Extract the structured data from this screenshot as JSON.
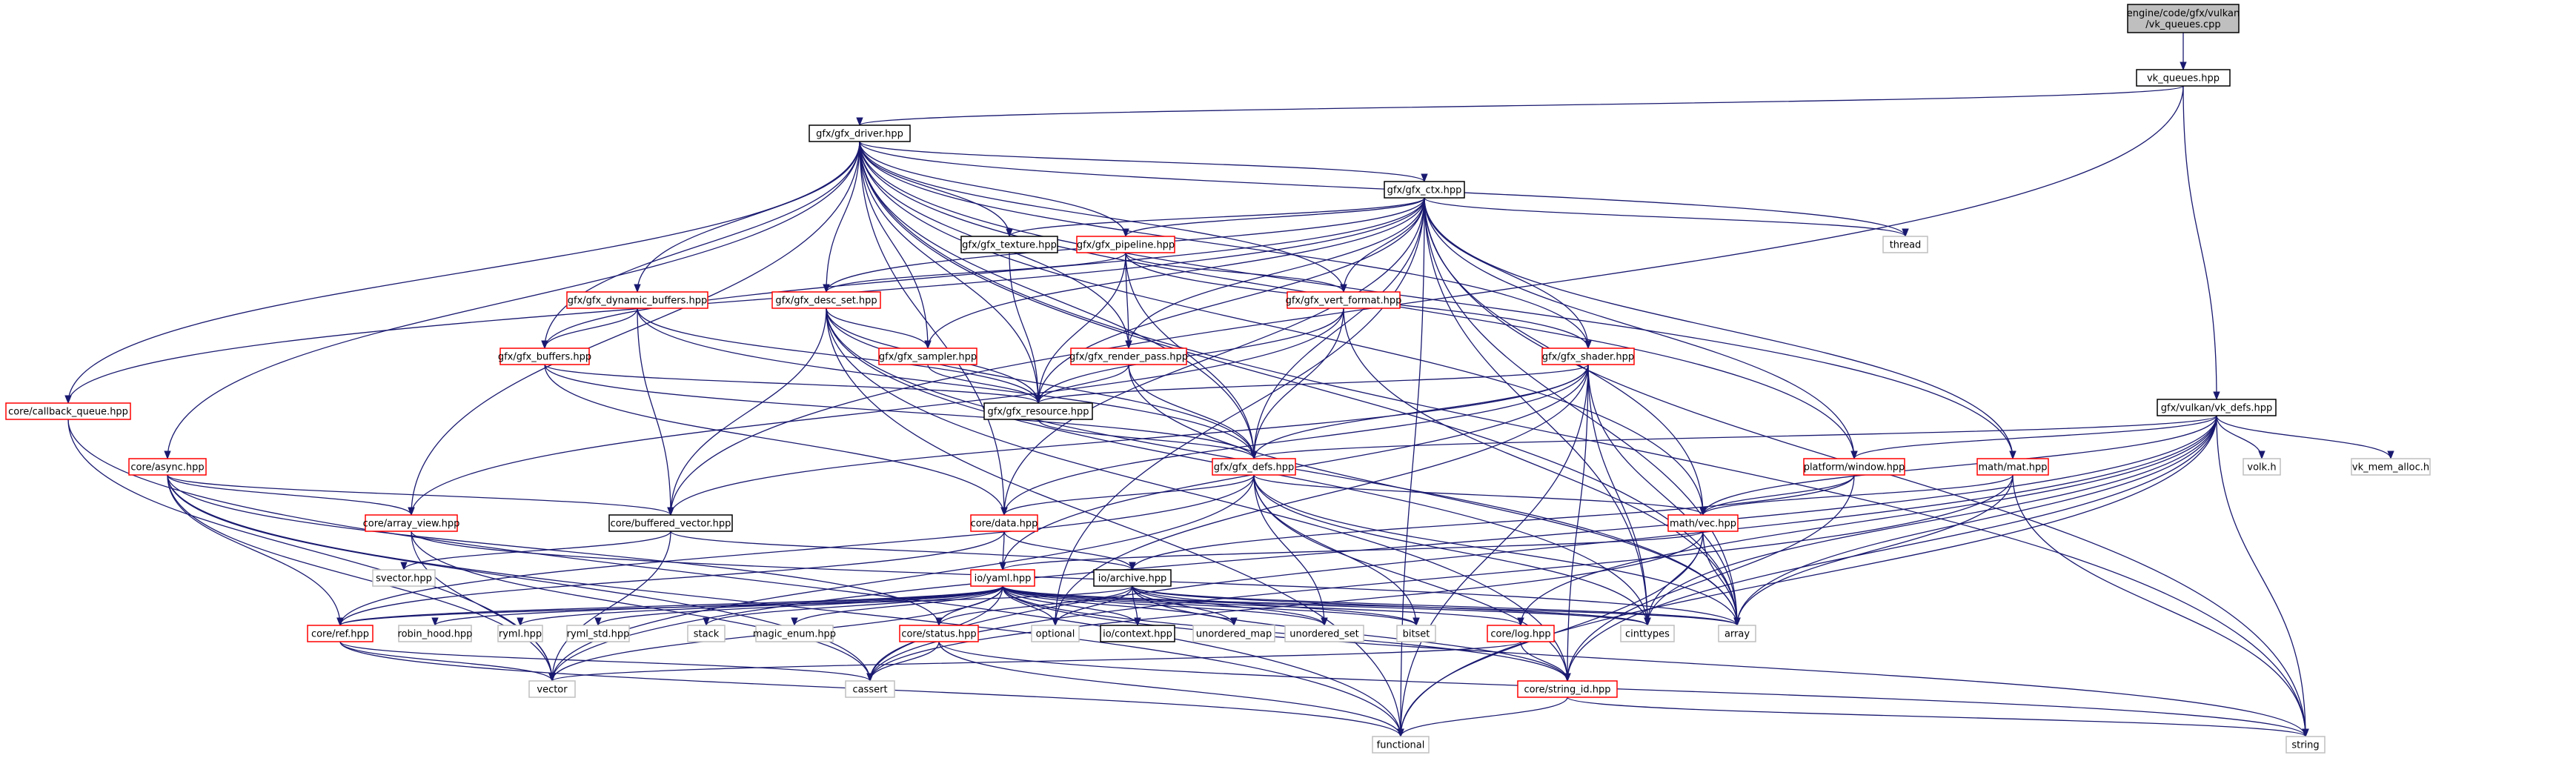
{
  "colors": {
    "root_fill": "#bfbfbf",
    "normal_border": "#000000",
    "red_border": "#ff0000",
    "system_border": "#bfbfbf",
    "edge": "#191970"
  },
  "nodes": [
    {
      "id": "root",
      "lines": [
        "engine/code/gfx/vulkan",
        "/vk_queues.cpp"
      ],
      "kind": "root"
    },
    {
      "id": "vk_queues",
      "lines": [
        "vk_queues.hpp"
      ],
      "kind": "normal"
    },
    {
      "id": "gfx_driver",
      "lines": [
        "gfx/gfx_driver.hpp"
      ],
      "kind": "normal"
    },
    {
      "id": "vk_defs",
      "lines": [
        "gfx/vulkan/vk_defs.hpp"
      ],
      "kind": "normal"
    },
    {
      "id": "gfx_ctx",
      "lines": [
        "gfx/gfx_ctx.hpp"
      ],
      "kind": "normal"
    },
    {
      "id": "thread",
      "lines": [
        "thread"
      ],
      "kind": "system"
    },
    {
      "id": "gfx_texture",
      "lines": [
        "gfx/gfx_texture.hpp"
      ],
      "kind": "normal"
    },
    {
      "id": "gfx_pipeline",
      "lines": [
        "gfx/gfx_pipeline.hpp"
      ],
      "kind": "red"
    },
    {
      "id": "gfx_dyn_buffers",
      "lines": [
        "gfx/gfx_dynamic_buffers.hpp"
      ],
      "kind": "red"
    },
    {
      "id": "gfx_desc_set",
      "lines": [
        "gfx/gfx_desc_set.hpp"
      ],
      "kind": "red"
    },
    {
      "id": "gfx_vert_format",
      "lines": [
        "gfx/gfx_vert_format.hpp"
      ],
      "kind": "red"
    },
    {
      "id": "gfx_buffers",
      "lines": [
        "gfx/gfx_buffers.hpp"
      ],
      "kind": "red"
    },
    {
      "id": "gfx_sampler",
      "lines": [
        "gfx/gfx_sampler.hpp"
      ],
      "kind": "red"
    },
    {
      "id": "gfx_render_pass",
      "lines": [
        "gfx/gfx_render_pass.hpp"
      ],
      "kind": "red"
    },
    {
      "id": "gfx_shader",
      "lines": [
        "gfx/gfx_shader.hpp"
      ],
      "kind": "red"
    },
    {
      "id": "callback_queue",
      "lines": [
        "core/callback_queue.hpp"
      ],
      "kind": "red"
    },
    {
      "id": "gfx_resource",
      "lines": [
        "gfx/gfx_resource.hpp"
      ],
      "kind": "normal"
    },
    {
      "id": "gfx_defs",
      "lines": [
        "gfx/gfx_defs.hpp"
      ],
      "kind": "red"
    },
    {
      "id": "platform_window",
      "lines": [
        "platform/window.hpp"
      ],
      "kind": "red"
    },
    {
      "id": "math_mat",
      "lines": [
        "math/mat.hpp"
      ],
      "kind": "red"
    },
    {
      "id": "volk",
      "lines": [
        "volk.h"
      ],
      "kind": "system"
    },
    {
      "id": "vk_mem_alloc",
      "lines": [
        "vk_mem_alloc.h"
      ],
      "kind": "system"
    },
    {
      "id": "core_async",
      "lines": [
        "core/async.hpp"
      ],
      "kind": "red"
    },
    {
      "id": "array_view",
      "lines": [
        "core/array_view.hpp"
      ],
      "kind": "red"
    },
    {
      "id": "buffered_vector",
      "lines": [
        "core/buffered_vector.hpp"
      ],
      "kind": "normal"
    },
    {
      "id": "core_data",
      "lines": [
        "core/data.hpp"
      ],
      "kind": "red"
    },
    {
      "id": "math_vec",
      "lines": [
        "math/vec.hpp"
      ],
      "kind": "red"
    },
    {
      "id": "svector",
      "lines": [
        "svector.hpp"
      ],
      "kind": "system"
    },
    {
      "id": "io_yaml",
      "lines": [
        "io/yaml.hpp"
      ],
      "kind": "red"
    },
    {
      "id": "io_archive",
      "lines": [
        "io/archive.hpp"
      ],
      "kind": "normal"
    },
    {
      "id": "core_ref",
      "lines": [
        "core/ref.hpp"
      ],
      "kind": "red"
    },
    {
      "id": "robin_hood",
      "lines": [
        "robin_hood.hpp"
      ],
      "kind": "system"
    },
    {
      "id": "ryml",
      "lines": [
        "ryml.hpp"
      ],
      "kind": "system"
    },
    {
      "id": "ryml_std",
      "lines": [
        "ryml_std.hpp"
      ],
      "kind": "system"
    },
    {
      "id": "stack",
      "lines": [
        "stack"
      ],
      "kind": "system"
    },
    {
      "id": "magic_enum",
      "lines": [
        "magic_enum.hpp"
      ],
      "kind": "system"
    },
    {
      "id": "core_status",
      "lines": [
        "core/status.hpp"
      ],
      "kind": "red"
    },
    {
      "id": "optional",
      "lines": [
        "optional"
      ],
      "kind": "system"
    },
    {
      "id": "io_context",
      "lines": [
        "io/context.hpp"
      ],
      "kind": "normal"
    },
    {
      "id": "unordered_map",
      "lines": [
        "unordered_map"
      ],
      "kind": "system"
    },
    {
      "id": "unordered_set",
      "lines": [
        "unordered_set"
      ],
      "kind": "system"
    },
    {
      "id": "bitset",
      "lines": [
        "bitset"
      ],
      "kind": "system"
    },
    {
      "id": "core_log",
      "lines": [
        "core/log.hpp"
      ],
      "kind": "red"
    },
    {
      "id": "cinttypes",
      "lines": [
        "cinttypes"
      ],
      "kind": "system"
    },
    {
      "id": "array",
      "lines": [
        "array"
      ],
      "kind": "system"
    },
    {
      "id": "vector",
      "lines": [
        "vector"
      ],
      "kind": "system"
    },
    {
      "id": "cassert",
      "lines": [
        "cassert"
      ],
      "kind": "system"
    },
    {
      "id": "string_id",
      "lines": [
        "core/string_id.hpp"
      ],
      "kind": "red"
    },
    {
      "id": "functional",
      "lines": [
        "functional"
      ],
      "kind": "system"
    },
    {
      "id": "string",
      "lines": [
        "string"
      ],
      "kind": "system"
    }
  ],
  "edges": [
    [
      "root",
      "vk_queues"
    ],
    [
      "vk_queues",
      "gfx_driver"
    ],
    [
      "vk_queues",
      "vk_defs"
    ],
    [
      "vk_queues",
      "buffered_vector"
    ],
    [
      "gfx_driver",
      "gfx_ctx"
    ],
    [
      "gfx_driver",
      "thread"
    ],
    [
      "gfx_driver",
      "gfx_texture"
    ],
    [
      "gfx_driver",
      "gfx_pipeline"
    ],
    [
      "gfx_driver",
      "gfx_dyn_buffers"
    ],
    [
      "gfx_driver",
      "gfx_desc_set"
    ],
    [
      "gfx_driver",
      "gfx_vert_format"
    ],
    [
      "gfx_driver",
      "gfx_buffers"
    ],
    [
      "gfx_driver",
      "gfx_sampler"
    ],
    [
      "gfx_driver",
      "gfx_render_pass"
    ],
    [
      "gfx_driver",
      "gfx_shader"
    ],
    [
      "gfx_driver",
      "callback_queue"
    ],
    [
      "gfx_driver",
      "gfx_resource"
    ],
    [
      "gfx_driver",
      "gfx_defs"
    ],
    [
      "gfx_driver",
      "platform_window"
    ],
    [
      "gfx_driver",
      "math_mat"
    ],
    [
      "gfx_driver",
      "core_async"
    ],
    [
      "gfx_driver",
      "array_view"
    ],
    [
      "gfx_driver",
      "core_data"
    ],
    [
      "gfx_driver",
      "math_vec"
    ],
    [
      "gfx_driver",
      "array"
    ],
    [
      "gfx_driver",
      "string"
    ],
    [
      "gfx_ctx",
      "thread"
    ],
    [
      "gfx_ctx",
      "gfx_texture"
    ],
    [
      "gfx_ctx",
      "gfx_pipeline"
    ],
    [
      "gfx_ctx",
      "gfx_desc_set"
    ],
    [
      "gfx_ctx",
      "gfx_vert_format"
    ],
    [
      "gfx_ctx",
      "gfx_buffers"
    ],
    [
      "gfx_ctx",
      "gfx_sampler"
    ],
    [
      "gfx_ctx",
      "gfx_render_pass"
    ],
    [
      "gfx_ctx",
      "gfx_shader"
    ],
    [
      "gfx_ctx",
      "callback_queue"
    ],
    [
      "gfx_ctx",
      "gfx_resource"
    ],
    [
      "gfx_ctx",
      "gfx_defs"
    ],
    [
      "gfx_ctx",
      "platform_window"
    ],
    [
      "gfx_ctx",
      "math_mat"
    ],
    [
      "gfx_ctx",
      "math_vec"
    ],
    [
      "gfx_ctx",
      "core_data"
    ],
    [
      "gfx_ctx",
      "optional"
    ],
    [
      "gfx_ctx",
      "cinttypes"
    ],
    [
      "gfx_ctx",
      "array"
    ],
    [
      "gfx_ctx",
      "string"
    ],
    [
      "gfx_ctx",
      "functional"
    ],
    [
      "gfx_pipeline",
      "gfx_desc_set"
    ],
    [
      "gfx_pipeline",
      "gfx_vert_format"
    ],
    [
      "gfx_pipeline",
      "gfx_render_pass"
    ],
    [
      "gfx_pipeline",
      "gfx_shader"
    ],
    [
      "gfx_pipeline",
      "gfx_resource"
    ],
    [
      "gfx_pipeline",
      "gfx_defs"
    ],
    [
      "gfx_texture",
      "gfx_resource"
    ],
    [
      "gfx_dyn_buffers",
      "gfx_buffers"
    ],
    [
      "gfx_dyn_buffers",
      "gfx_resource"
    ],
    [
      "gfx_dyn_buffers",
      "buffered_vector"
    ],
    [
      "gfx_dyn_buffers",
      "gfx_defs"
    ],
    [
      "gfx_desc_set",
      "gfx_sampler"
    ],
    [
      "gfx_desc_set",
      "gfx_resource"
    ],
    [
      "gfx_desc_set",
      "gfx_defs"
    ],
    [
      "gfx_desc_set",
      "buffered_vector"
    ],
    [
      "gfx_desc_set",
      "functional"
    ],
    [
      "gfx_desc_set",
      "array"
    ],
    [
      "gfx_desc_set",
      "string_id"
    ],
    [
      "gfx_desc_set",
      "cinttypes"
    ],
    [
      "gfx_vert_format",
      "gfx_resource"
    ],
    [
      "gfx_vert_format",
      "gfx_defs"
    ],
    [
      "gfx_vert_format",
      "array"
    ],
    [
      "gfx_vert_format",
      "array_view"
    ],
    [
      "gfx_buffers",
      "gfx_resource"
    ],
    [
      "gfx_buffers",
      "gfx_defs"
    ],
    [
      "gfx_buffers",
      "core_data"
    ],
    [
      "gfx_sampler",
      "gfx_resource"
    ],
    [
      "gfx_render_pass",
      "gfx_resource"
    ],
    [
      "gfx_render_pass",
      "gfx_defs"
    ],
    [
      "gfx_render_pass",
      "array"
    ],
    [
      "gfx_shader",
      "gfx_resource"
    ],
    [
      "gfx_shader",
      "gfx_defs"
    ],
    [
      "gfx_shader",
      "core_data"
    ],
    [
      "gfx_shader",
      "string_id"
    ],
    [
      "gfx_shader",
      "array"
    ],
    [
      "gfx_shader",
      "cinttypes"
    ],
    [
      "gfx_shader",
      "optional"
    ],
    [
      "gfx_shader",
      "buffered_vector"
    ],
    [
      "gfx_shader",
      "functional"
    ],
    [
      "gfx_shader",
      "io_yaml"
    ],
    [
      "callback_queue",
      "functional"
    ],
    [
      "callback_queue",
      "vector"
    ],
    [
      "gfx_resource",
      "gfx_defs"
    ],
    [
      "gfx_defs",
      "math_vec"
    ],
    [
      "gfx_defs",
      "core_data"
    ],
    [
      "gfx_defs",
      "array"
    ],
    [
      "gfx_defs",
      "bitset"
    ],
    [
      "gfx_defs",
      "unordered_set"
    ],
    [
      "gfx_defs",
      "string_id"
    ],
    [
      "gfx_defs",
      "cinttypes"
    ],
    [
      "gfx_defs",
      "core_ref"
    ],
    [
      "gfx_defs",
      "vector"
    ],
    [
      "vk_defs",
      "gfx_defs"
    ],
    [
      "vk_defs",
      "platform_window"
    ],
    [
      "vk_defs",
      "math_vec"
    ],
    [
      "vk_defs",
      "volk"
    ],
    [
      "vk_defs",
      "vk_mem_alloc"
    ],
    [
      "vk_defs",
      "string"
    ],
    [
      "vk_defs",
      "functional"
    ],
    [
      "vk_defs",
      "vector"
    ],
    [
      "vk_defs",
      "string_id"
    ],
    [
      "vk_defs",
      "array"
    ],
    [
      "vk_defs",
      "cinttypes"
    ],
    [
      "vk_defs",
      "cassert"
    ],
    [
      "vk_defs",
      "core_log"
    ],
    [
      "platform_window",
      "math_vec"
    ],
    [
      "platform_window",
      "string_id"
    ],
    [
      "platform_window",
      "io_archive"
    ],
    [
      "math_mat",
      "math_vec"
    ],
    [
      "math_mat",
      "string"
    ],
    [
      "math_mat",
      "array"
    ],
    [
      "math_mat",
      "cassert"
    ],
    [
      "core_async",
      "array_view"
    ],
    [
      "core_async",
      "buffered_vector"
    ],
    [
      "core_async",
      "core_ref"
    ],
    [
      "core_async",
      "functional"
    ],
    [
      "core_async",
      "vector"
    ],
    [
      "core_async",
      "cassert"
    ],
    [
      "core_async",
      "core_status"
    ],
    [
      "array_view",
      "vector"
    ],
    [
      "array_view",
      "cassert"
    ],
    [
      "array_view",
      "array"
    ],
    [
      "buffered_vector",
      "svector"
    ],
    [
      "buffered_vector",
      "vector"
    ],
    [
      "buffered_vector",
      "io_archive"
    ],
    [
      "core_data",
      "io_yaml"
    ],
    [
      "core_data",
      "io_archive"
    ],
    [
      "core_data",
      "core_ref"
    ],
    [
      "math_vec",
      "io_yaml"
    ],
    [
      "math_vec",
      "functional"
    ],
    [
      "math_vec",
      "cassert"
    ],
    [
      "math_vec",
      "cinttypes"
    ],
    [
      "math_vec",
      "array"
    ],
    [
      "io_yaml",
      "core_ref"
    ],
    [
      "io_yaml",
      "robin_hood"
    ],
    [
      "io_yaml",
      "ryml"
    ],
    [
      "io_yaml",
      "ryml_std"
    ],
    [
      "io_yaml",
      "stack"
    ],
    [
      "io_yaml",
      "magic_enum"
    ],
    [
      "io_yaml",
      "core_status"
    ],
    [
      "io_yaml",
      "optional"
    ],
    [
      "io_yaml",
      "io_context"
    ],
    [
      "io_yaml",
      "unordered_map"
    ],
    [
      "io_yaml",
      "unordered_set"
    ],
    [
      "io_yaml",
      "bitset"
    ],
    [
      "io_yaml",
      "core_log"
    ],
    [
      "io_yaml",
      "cinttypes"
    ],
    [
      "io_yaml",
      "array"
    ],
    [
      "io_yaml",
      "vector"
    ],
    [
      "io_yaml",
      "cassert"
    ],
    [
      "io_yaml",
      "string_id"
    ],
    [
      "io_yaml",
      "string"
    ],
    [
      "io_archive",
      "io_context"
    ],
    [
      "io_archive",
      "optional"
    ],
    [
      "io_archive",
      "unordered_map"
    ],
    [
      "io_archive",
      "unordered_set"
    ],
    [
      "io_archive",
      "bitset"
    ],
    [
      "io_archive",
      "cinttypes"
    ],
    [
      "io_archive",
      "array"
    ],
    [
      "io_archive",
      "core_status"
    ],
    [
      "io_archive",
      "core_ref"
    ],
    [
      "io_archive",
      "string_id"
    ],
    [
      "core_ref",
      "vector"
    ],
    [
      "core_ref",
      "functional"
    ],
    [
      "core_ref",
      "cassert"
    ],
    [
      "core_status",
      "functional"
    ],
    [
      "core_status",
      "string"
    ],
    [
      "core_status",
      "cassert"
    ],
    [
      "core_log",
      "string_id"
    ],
    [
      "core_log",
      "vector"
    ],
    [
      "string_id",
      "functional"
    ],
    [
      "string_id",
      "string"
    ]
  ]
}
